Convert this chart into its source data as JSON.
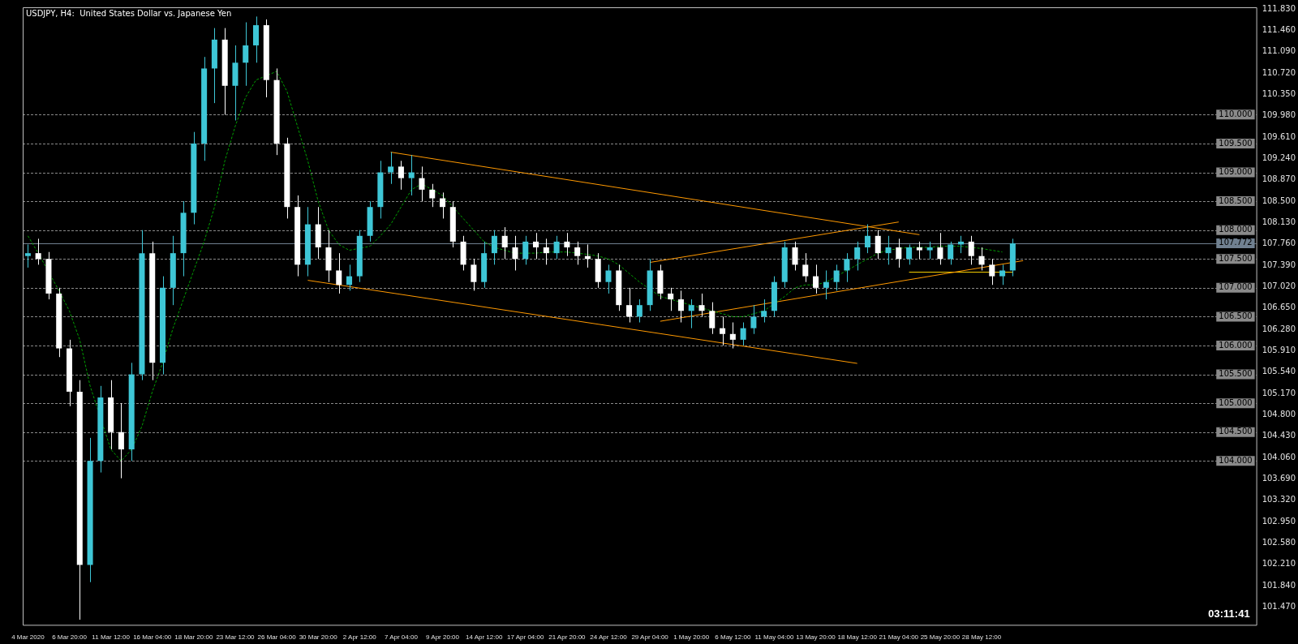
{
  "chart_data": {
    "type": "candlestick",
    "title": "USDJPY, H4:  United States Dollar vs. Japanese Yen",
    "categories": [
      "4 Mar 2020",
      null,
      null,
      null,
      "6 Mar 20:00",
      null,
      null,
      null,
      "11 Mar 12:00",
      null,
      null,
      null,
      "16 Mar 04:00",
      null,
      null,
      null,
      "18 Mar 20:00",
      null,
      null,
      null,
      "23 Mar 12:00",
      null,
      null,
      null,
      "26 Mar 04:00",
      null,
      null,
      null,
      "30 Mar 20:00",
      null,
      null,
      null,
      "2 Apr 12:00",
      null,
      null,
      null,
      "7 Apr 04:00",
      null,
      null,
      null,
      "9 Apr 20:00",
      null,
      null,
      null,
      "14 Apr 12:00",
      null,
      null,
      null,
      "17 Apr 04:00",
      null,
      null,
      null,
      "21 Apr 20:00",
      null,
      null,
      null,
      "24 Apr 12:00",
      null,
      null,
      null,
      "29 Apr 04:00",
      null,
      null,
      null,
      "1 May 20:00",
      null,
      null,
      null,
      "6 May 12:00",
      null,
      null,
      null,
      "11 May 04:00",
      null,
      null,
      null,
      "13 May 20:00",
      null,
      null,
      null,
      "18 May 12:00",
      null,
      null,
      null,
      "21 May 04:00",
      null,
      null,
      null,
      "25 May 20:00",
      null,
      null,
      null,
      "28 May 12:00",
      null,
      null,
      null,
      null,
      null,
      null,
      null,
      null,
      null,
      null,
      null,
      null,
      null,
      null,
      null,
      null,
      null,
      null,
      null,
      null,
      null,
      null,
      null,
      null,
      null,
      null
    ],
    "series": [
      {
        "type": "candlestick",
        "ohlc": [
          [
            107.55,
            107.75,
            107.35,
            107.6
          ],
          [
            107.6,
            107.85,
            107.4,
            107.5
          ],
          [
            107.5,
            107.62,
            106.8,
            106.9
          ],
          [
            106.9,
            107.0,
            105.8,
            105.95
          ],
          [
            105.95,
            106.1,
            104.95,
            105.2
          ],
          [
            105.2,
            105.4,
            101.25,
            102.2
          ],
          [
            102.2,
            104.4,
            101.9,
            104.0
          ],
          [
            104.0,
            105.3,
            103.8,
            105.1
          ],
          [
            105.1,
            105.4,
            104.2,
            104.5
          ],
          [
            104.5,
            105.0,
            103.7,
            104.2
          ],
          [
            104.2,
            105.7,
            104.0,
            105.5
          ],
          [
            105.5,
            108.0,
            105.4,
            107.6
          ],
          [
            107.6,
            107.8,
            105.4,
            105.7
          ],
          [
            105.7,
            107.2,
            105.5,
            107.0
          ],
          [
            107.0,
            107.9,
            106.7,
            107.6
          ],
          [
            107.6,
            108.5,
            107.2,
            108.3
          ],
          [
            108.3,
            109.7,
            108.1,
            109.5
          ],
          [
            109.5,
            111.0,
            109.2,
            110.8
          ],
          [
            110.8,
            111.5,
            110.2,
            111.3
          ],
          [
            111.3,
            111.5,
            110.0,
            110.5
          ],
          [
            110.5,
            111.2,
            109.9,
            110.9
          ],
          [
            110.9,
            111.6,
            110.5,
            111.2
          ],
          [
            111.2,
            111.7,
            110.9,
            111.55
          ],
          [
            111.55,
            111.65,
            110.3,
            110.6
          ],
          [
            110.6,
            110.8,
            109.3,
            109.5
          ],
          [
            109.5,
            109.6,
            108.2,
            108.4
          ],
          [
            108.4,
            108.6,
            107.2,
            107.4
          ],
          [
            107.4,
            108.4,
            107.2,
            108.1
          ],
          [
            108.1,
            108.4,
            107.5,
            107.7
          ],
          [
            107.7,
            108.0,
            107.1,
            107.3
          ],
          [
            107.3,
            107.6,
            106.9,
            107.05
          ],
          [
            107.05,
            107.4,
            106.95,
            107.2
          ],
          [
            107.2,
            108.0,
            107.1,
            107.9
          ],
          [
            107.9,
            108.5,
            107.8,
            108.4
          ],
          [
            108.4,
            109.2,
            108.2,
            109.0
          ],
          [
            109.0,
            109.35,
            108.8,
            109.1
          ],
          [
            109.1,
            109.2,
            108.7,
            108.9
          ],
          [
            108.9,
            109.3,
            108.6,
            109.0
          ],
          [
            108.9,
            109.1,
            108.5,
            108.7
          ],
          [
            108.7,
            108.8,
            108.4,
            108.55
          ],
          [
            108.55,
            108.65,
            108.2,
            108.4
          ],
          [
            108.4,
            108.5,
            107.7,
            107.8
          ],
          [
            107.8,
            107.9,
            107.3,
            107.4
          ],
          [
            107.4,
            107.5,
            106.95,
            107.1
          ],
          [
            107.1,
            107.8,
            107.0,
            107.6
          ],
          [
            107.6,
            108.0,
            107.4,
            107.9
          ],
          [
            107.9,
            108.05,
            107.5,
            107.7
          ],
          [
            107.7,
            107.9,
            107.3,
            107.5
          ],
          [
            107.5,
            107.9,
            107.4,
            107.8
          ],
          [
            107.8,
            107.95,
            107.5,
            107.7
          ],
          [
            107.7,
            107.85,
            107.4,
            107.6
          ],
          [
            107.6,
            107.9,
            107.5,
            107.8
          ],
          [
            107.8,
            107.95,
            107.55,
            107.7
          ],
          [
            107.7,
            107.8,
            107.4,
            107.55
          ],
          [
            107.55,
            107.75,
            107.35,
            107.5
          ],
          [
            107.5,
            107.6,
            107.0,
            107.1
          ],
          [
            107.1,
            107.4,
            106.9,
            107.3
          ],
          [
            107.3,
            107.4,
            106.6,
            106.7
          ],
          [
            106.7,
            107.0,
            106.4,
            106.5
          ],
          [
            106.5,
            106.8,
            106.4,
            106.7
          ],
          [
            106.7,
            107.5,
            106.6,
            107.3
          ],
          [
            107.3,
            107.4,
            106.8,
            106.9
          ],
          [
            106.9,
            107.0,
            106.6,
            106.8
          ],
          [
            106.8,
            106.95,
            106.4,
            106.6
          ],
          [
            106.6,
            106.8,
            106.3,
            106.7
          ],
          [
            106.7,
            106.9,
            106.5,
            106.6
          ],
          [
            106.6,
            106.75,
            106.2,
            106.3
          ],
          [
            106.3,
            106.5,
            106.0,
            106.2
          ],
          [
            106.2,
            106.4,
            105.95,
            106.1
          ],
          [
            106.1,
            106.4,
            106.0,
            106.3
          ],
          [
            106.3,
            106.7,
            106.2,
            106.5
          ],
          [
            106.5,
            106.8,
            106.4,
            106.6
          ],
          [
            106.6,
            107.2,
            106.5,
            107.1
          ],
          [
            107.1,
            107.8,
            107.0,
            107.7
          ],
          [
            107.7,
            107.8,
            107.3,
            107.4
          ],
          [
            107.4,
            107.6,
            107.1,
            107.2
          ],
          [
            107.2,
            107.4,
            106.9,
            107.0
          ],
          [
            107.0,
            107.3,
            106.8,
            107.1
          ],
          [
            107.1,
            107.4,
            106.95,
            107.3
          ],
          [
            107.3,
            107.6,
            107.1,
            107.5
          ],
          [
            107.5,
            107.8,
            107.3,
            107.7
          ],
          [
            107.7,
            108.1,
            107.6,
            107.9
          ],
          [
            107.9,
            108.0,
            107.5,
            107.6
          ],
          [
            107.6,
            107.9,
            107.4,
            107.7
          ],
          [
            107.7,
            107.85,
            107.35,
            107.5
          ],
          [
            107.5,
            107.75,
            107.4,
            107.7
          ],
          [
            107.7,
            107.8,
            107.5,
            107.65
          ],
          [
            107.65,
            107.8,
            107.5,
            107.7
          ],
          [
            107.7,
            107.95,
            107.4,
            107.5
          ],
          [
            107.5,
            107.8,
            107.4,
            107.75
          ],
          [
            107.75,
            107.9,
            107.6,
            107.8
          ],
          [
            107.8,
            107.9,
            107.4,
            107.55
          ],
          [
            107.55,
            107.7,
            107.3,
            107.4
          ],
          [
            107.4,
            107.5,
            107.05,
            107.2
          ],
          [
            107.2,
            107.4,
            107.05,
            107.3
          ],
          [
            107.3,
            107.85,
            107.2,
            107.77
          ],
          null,
          null,
          null,
          null,
          null,
          null,
          null,
          null,
          null,
          null,
          null,
          null,
          null,
          null,
          null,
          null,
          null,
          null,
          null,
          null,
          null,
          null,
          null
        ],
        "colors": [
          "#3ec6d6",
          "#ffffff",
          "#ffffff",
          "#ffffff",
          "#ffffff",
          "#ffffff",
          "#3ec6d6",
          "#3ec6d6",
          "#ffffff",
          "#ffffff",
          "#3ec6d6",
          "#3ec6d6",
          "#ffffff",
          "#3ec6d6",
          "#3ec6d6",
          "#3ec6d6",
          "#3ec6d6",
          "#3ec6d6",
          "#3ec6d6",
          "#ffffff",
          "#3ec6d6",
          "#3ec6d6",
          "#3ec6d6",
          "#ffffff",
          "#ffffff",
          "#ffffff",
          "#ffffff",
          "#3ec6d6",
          "#ffffff",
          "#ffffff",
          "#ffffff",
          "#3ec6d6",
          "#3ec6d6",
          "#3ec6d6",
          "#3ec6d6",
          "#3ec6d6",
          "#ffffff",
          "#3ec6d6",
          "#ffffff",
          "#ffffff",
          "#ffffff",
          "#ffffff",
          "#ffffff",
          "#ffffff",
          "#3ec6d6",
          "#3ec6d6",
          "#ffffff",
          "#ffffff",
          "#3ec6d6",
          "#ffffff",
          "#ffffff",
          "#3ec6d6",
          "#ffffff",
          "#ffffff",
          "#ffffff",
          "#ffffff",
          "#3ec6d6",
          "#ffffff",
          "#ffffff",
          "#3ec6d6",
          "#3ec6d6",
          "#ffffff",
          "#ffffff",
          "#ffffff",
          "#3ec6d6",
          "#ffffff",
          "#ffffff",
          "#ffffff",
          "#ffffff",
          "#3ec6d6",
          "#3ec6d6",
          "#3ec6d6",
          "#3ec6d6",
          "#3ec6d6",
          "#ffffff",
          "#ffffff",
          "#ffffff",
          "#3ec6d6",
          "#3ec6d6",
          "#3ec6d6",
          "#3ec6d6",
          "#3ec6d6",
          "#ffffff",
          "#3ec6d6",
          "#ffffff",
          "#3ec6d6",
          "#ffffff",
          "#3ec6d6",
          "#ffffff",
          "#3ec6d6",
          "#3ec6d6",
          "#ffffff",
          "#ffffff",
          "#ffffff",
          "#3ec6d6",
          "#3ec6d6",
          null,
          null,
          null,
          null,
          null,
          null,
          null,
          null,
          null,
          null,
          null,
          null,
          null,
          null,
          null,
          null,
          null,
          null,
          null,
          null,
          null,
          null,
          null
        ]
      },
      {
        "type": "line",
        "color": "#00a000",
        "line_style": "dashed",
        "values": [
          107.9,
          107.6,
          null,
          106.95,
          106.6,
          106.1,
          105.3,
          null,
          104.2,
          104.0,
          104.2,
          104.6,
          105.2,
          105.7,
          106.3,
          106.8,
          107.3,
          107.8,
          108.4,
          109.2,
          109.8,
          110.3,
          110.6,
          null,
          110.75,
          110.4,
          109.8,
          109.2,
          108.5,
          108.0,
          107.75,
          107.65,
          null,
          107.72,
          107.9,
          108.1,
          108.4,
          108.7,
          108.8,
          108.7,
          108.6,
          108.4,
          108.2,
          108.0,
          107.8,
          107.7,
          107.65,
          107.6,
          null,
          107.6,
          107.62,
          107.62,
          107.62,
          107.6,
          107.58,
          107.55,
          107.5,
          107.4,
          107.25,
          107.1,
          null,
          106.85,
          106.8,
          106.75,
          106.7,
          106.65,
          106.6,
          106.55,
          106.5,
          106.5,
          106.55,
          106.6,
          null,
          106.85,
          107.0,
          107.05,
          107.05,
          107.1,
          107.2,
          107.3,
          107.4,
          107.5,
          107.6,
          107.65,
          107.68,
          107.7,
          107.7,
          107.7,
          107.72,
          107.72,
          107.72,
          107.7,
          107.68,
          107.65,
          107.62,
          null,
          null,
          null,
          null,
          null,
          null,
          null,
          null,
          null,
          null,
          null,
          null,
          null,
          null,
          null,
          null,
          null,
          null,
          null,
          null,
          null,
          null,
          null,
          null
        ]
      },
      {
        "type": "line",
        "color": "#ff9900",
        "values": [
          null,
          null,
          null,
          null,
          null,
          null,
          null,
          null,
          null,
          null,
          null,
          null,
          null,
          null,
          null,
          null,
          null,
          null,
          null,
          null,
          null,
          null,
          null,
          null,
          null,
          null,
          null,
          null,
          null,
          null,
          null,
          null,
          null,
          null,
          null,
          109.35,
          null,
          null,
          null,
          null,
          null,
          null,
          null,
          null,
          null,
          null,
          null,
          null,
          null,
          null,
          null,
          null,
          null,
          null,
          null,
          null,
          null,
          null,
          null,
          null,
          null,
          null,
          null,
          null,
          null,
          null,
          null,
          null,
          null,
          null,
          null,
          null,
          null,
          null,
          null,
          null,
          null,
          null,
          null,
          null,
          null,
          null,
          null,
          null,
          null,
          null,
          107.92,
          null,
          null,
          null,
          null,
          null,
          null,
          null,
          null,
          null,
          null,
          null,
          null,
          null,
          null,
          null,
          null,
          null,
          null,
          null,
          null,
          null,
          null,
          null,
          null,
          null,
          null,
          null,
          null,
          null,
          null,
          null,
          null
        ]
      },
      {
        "type": "line",
        "color": "#ff9900",
        "values": [
          null,
          null,
          null,
          null,
          null,
          null,
          null,
          null,
          null,
          null,
          null,
          null,
          null,
          null,
          null,
          null,
          null,
          null,
          null,
          null,
          null,
          null,
          null,
          null,
          null,
          null,
          null,
          107.13,
          null,
          null,
          null,
          null,
          null,
          null,
          null,
          null,
          null,
          null,
          null,
          null,
          null,
          null,
          null,
          null,
          null,
          null,
          null,
          null,
          null,
          null,
          null,
          null,
          null,
          null,
          null,
          null,
          null,
          null,
          null,
          null,
          null,
          null,
          null,
          null,
          null,
          null,
          null,
          null,
          null,
          null,
          null,
          null,
          null,
          null,
          null,
          null,
          null,
          null,
          null,
          null,
          105.69,
          null,
          null,
          null,
          null,
          null,
          null,
          null,
          null,
          null,
          null,
          null,
          null,
          null,
          null,
          null,
          null,
          null,
          null,
          null,
          null,
          null,
          null,
          null,
          null,
          null,
          null,
          null,
          null,
          null,
          null,
          null,
          null,
          null,
          null,
          null,
          null,
          null,
          null
        ]
      },
      {
        "type": "line",
        "color": "#ff9900",
        "values": [
          null,
          null,
          null,
          null,
          null,
          null,
          null,
          null,
          null,
          null,
          null,
          null,
          null,
          null,
          null,
          null,
          null,
          null,
          null,
          null,
          null,
          null,
          null,
          null,
          null,
          null,
          null,
          null,
          null,
          null,
          null,
          null,
          null,
          null,
          null,
          null,
          null,
          null,
          null,
          null,
          null,
          null,
          null,
          null,
          null,
          null,
          null,
          null,
          null,
          null,
          null,
          null,
          null,
          null,
          null,
          null,
          null,
          null,
          null,
          null,
          107.44,
          null,
          null,
          null,
          null,
          null,
          null,
          null,
          null,
          null,
          null,
          null,
          null,
          null,
          null,
          null,
          null,
          null,
          null,
          null,
          null,
          null,
          null,
          null,
          108.14,
          null,
          null,
          null,
          null,
          null,
          null,
          null,
          null,
          null,
          null,
          null,
          null,
          null,
          null,
          null,
          null,
          null,
          null,
          null,
          null,
          null,
          null,
          null,
          null,
          null,
          null,
          null,
          null,
          null,
          null,
          null,
          null,
          null,
          null
        ]
      },
      {
        "type": "line",
        "color": "#ff9900",
        "values": [
          null,
          null,
          null,
          null,
          null,
          null,
          null,
          null,
          null,
          null,
          null,
          null,
          null,
          null,
          null,
          null,
          null,
          null,
          null,
          null,
          null,
          null,
          null,
          null,
          null,
          null,
          null,
          null,
          null,
          null,
          null,
          null,
          null,
          null,
          null,
          null,
          null,
          null,
          null,
          null,
          null,
          null,
          null,
          null,
          null,
          null,
          null,
          null,
          null,
          null,
          null,
          null,
          null,
          null,
          null,
          null,
          null,
          null,
          null,
          null,
          null,
          106.42,
          null,
          null,
          null,
          null,
          null,
          null,
          null,
          null,
          null,
          null,
          null,
          null,
          null,
          null,
          null,
          null,
          null,
          null,
          null,
          null,
          null,
          null,
          null,
          null,
          null,
          null,
          null,
          null,
          null,
          null,
          null,
          null,
          null,
          null,
          107.47,
          null,
          null,
          null,
          null,
          null,
          null,
          null,
          null,
          null,
          null,
          null,
          null,
          null,
          null,
          null,
          null,
          null,
          null,
          null,
          null,
          null,
          null
        ]
      },
      {
        "type": "line",
        "color": "#ffd700",
        "values": [
          null,
          null,
          null,
          null,
          null,
          null,
          null,
          null,
          null,
          null,
          null,
          null,
          null,
          null,
          null,
          null,
          null,
          null,
          null,
          null,
          null,
          null,
          null,
          null,
          null,
          null,
          null,
          null,
          null,
          null,
          null,
          null,
          null,
          null,
          null,
          null,
          null,
          null,
          null,
          null,
          null,
          null,
          null,
          null,
          null,
          null,
          null,
          null,
          null,
          null,
          null,
          null,
          null,
          null,
          null,
          null,
          null,
          null,
          null,
          null,
          null,
          null,
          null,
          null,
          null,
          null,
          null,
          null,
          null,
          null,
          null,
          null,
          null,
          null,
          null,
          null,
          null,
          null,
          null,
          null,
          null,
          null,
          null,
          null,
          null,
          107.27,
          null,
          null,
          null,
          null,
          null,
          null,
          null,
          null,
          null,
          107.27,
          null,
          null,
          null,
          null,
          null,
          null,
          null,
          null,
          null,
          null,
          null,
          null,
          null,
          null,
          null,
          null,
          null,
          null,
          null,
          null,
          null,
          null,
          null
        ]
      }
    ],
    "ylim": [
      101.16,
      111.86
    ],
    "yticks": [
      {
        "value": 101.47,
        "label": "101.470"
      },
      {
        "value": 101.84,
        "label": "101.840"
      },
      {
        "value": 102.21,
        "label": "102.210"
      },
      {
        "value": 102.58,
        "label": "102.580"
      },
      {
        "value": 102.95,
        "label": "102.950"
      },
      {
        "value": 103.32,
        "label": "103.320"
      },
      {
        "value": 103.69,
        "label": "103.690"
      },
      {
        "value": 104.06,
        "label": "104.060"
      },
      {
        "value": 104.43,
        "label": "104.430"
      },
      {
        "value": 104.8,
        "label": "104.800"
      },
      {
        "value": 105.17,
        "label": "105.170"
      },
      {
        "value": 105.54,
        "label": "105.540"
      },
      {
        "value": 105.91,
        "label": "105.910"
      },
      {
        "value": 106.28,
        "label": "106.280"
      },
      {
        "value": 106.65,
        "label": "106.650"
      },
      {
        "value": 107.02,
        "label": "107.020"
      },
      {
        "value": 107.39,
        "label": "107.390"
      },
      {
        "value": 107.76,
        "label": "107.760"
      },
      {
        "value": 108.13,
        "label": "108.130"
      },
      {
        "value": 108.5,
        "label": "108.500"
      },
      {
        "value": 108.87,
        "label": "108.870"
      },
      {
        "value": 109.24,
        "label": "109.240"
      },
      {
        "value": 109.61,
        "label": "109.610"
      },
      {
        "value": 109.98,
        "label": "109.980"
      },
      {
        "value": 110.35,
        "label": "110.350"
      },
      {
        "value": 110.72,
        "label": "110.720"
      },
      {
        "value": 111.09,
        "label": "111.090"
      },
      {
        "value": 111.46,
        "label": "111.460"
      },
      {
        "value": 111.83,
        "label": "111.830"
      }
    ],
    "ref_lines": [
      {
        "axis": "y",
        "value": 110,
        "label": "110.000",
        "color": "#8a8a8a",
        "line_style": "dashed"
      },
      {
        "axis": "y",
        "value": 109.5,
        "label": "109.500",
        "color": "#8a8a8a",
        "line_style": "dashed"
      },
      {
        "axis": "y",
        "value": 109,
        "label": "109.000",
        "color": "#8a8a8a",
        "line_style": "dashed"
      },
      {
        "axis": "y",
        "value": 108.5,
        "label": "108.500",
        "color": "#8a8a8a",
        "line_style": "dashed"
      },
      {
        "axis": "y",
        "value": 108,
        "label": "108.000",
        "color": "#8a8a8a",
        "line_style": "dashed"
      },
      {
        "axis": "y",
        "value": 107.772,
        "label": "107.772",
        "color": "#708090",
        "line_style": "solid"
      },
      {
        "axis": "y",
        "value": 107.5,
        "label": "107.500",
        "color": "#8a8a8a",
        "line_style": "dashed"
      },
      {
        "axis": "y",
        "value": 107,
        "label": "107.000",
        "color": "#8a8a8a",
        "line_style": "dashed"
      },
      {
        "axis": "y",
        "value": 106.5,
        "label": "106.500",
        "color": "#8a8a8a",
        "line_style": "dashed"
      },
      {
        "axis": "y",
        "value": 106,
        "label": "106.000",
        "color": "#8a8a8a",
        "line_style": "dashed"
      },
      {
        "axis": "y",
        "value": 105.5,
        "label": "105.500",
        "color": "#8a8a8a",
        "line_style": "dashed"
      },
      {
        "axis": "y",
        "value": 105,
        "label": "105.000",
        "color": "#8a8a8a",
        "line_style": "dashed"
      },
      {
        "axis": "y",
        "value": 104.5,
        "label": "104.500",
        "color": "#8a8a8a",
        "line_style": "dashed"
      },
      {
        "axis": "y",
        "value": 104,
        "label": "104.000",
        "color": "#8a8a8a",
        "line_style": "dashed"
      }
    ],
    "annotations": [
      "03:11:41"
    ]
  }
}
